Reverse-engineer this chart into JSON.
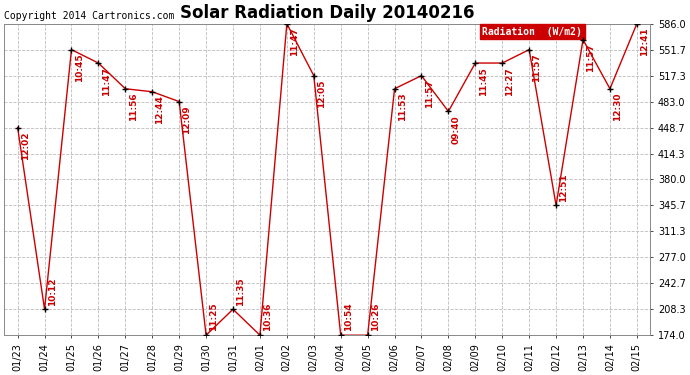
{
  "title": "Solar Radiation Daily 20140216",
  "copyright": "Copyright 2014 Cartronics.com",
  "legend_label": "Radiation  (W/m2)",
  "x_labels": [
    "01/23",
    "01/24",
    "01/25",
    "01/26",
    "01/27",
    "01/28",
    "01/29",
    "01/30",
    "01/31",
    "02/01",
    "02/02",
    "02/03",
    "02/04",
    "02/05",
    "02/06",
    "02/07",
    "02/08",
    "02/09",
    "02/10",
    "02/11",
    "02/12",
    "02/13",
    "02/14",
    "02/15"
  ],
  "y_values": [
    448.7,
    208.3,
    551.7,
    534.0,
    500.0,
    496.0,
    483.0,
    174.0,
    208.3,
    174.0,
    586.0,
    517.3,
    174.0,
    174.0,
    500.0,
    517.3,
    470.0,
    534.0,
    534.0,
    551.7,
    345.7,
    565.0,
    500.0,
    586.0
  ],
  "time_labels": [
    "12:02",
    "10:12",
    "10:45",
    "11:47",
    "11:56",
    "12:44",
    "12:09",
    "11:25",
    "11:35",
    "10:36",
    "11:47",
    "12:05",
    "10:54",
    "10:26",
    "11:53",
    "11:57",
    "09:40",
    "11:45",
    "12:27",
    "11:57",
    "12:51",
    "11:57",
    "12:30",
    "12:41"
  ],
  "y_ticks": [
    174.0,
    208.3,
    242.7,
    277.0,
    311.3,
    345.7,
    380.0,
    414.3,
    448.7,
    483.0,
    517.3,
    551.7,
    586.0
  ],
  "ylim": [
    174.0,
    586.0
  ],
  "line_color": "#cc0000",
  "marker_color": "#000000",
  "bg_color": "#ffffff",
  "plot_bg": "#ffffff",
  "grid_color": "#bbbbbb",
  "title_fontsize": 12,
  "copyright_fontsize": 7,
  "tick_label_fontsize": 7,
  "annotation_fontsize": 6.5,
  "annotation_color": "#cc0000"
}
